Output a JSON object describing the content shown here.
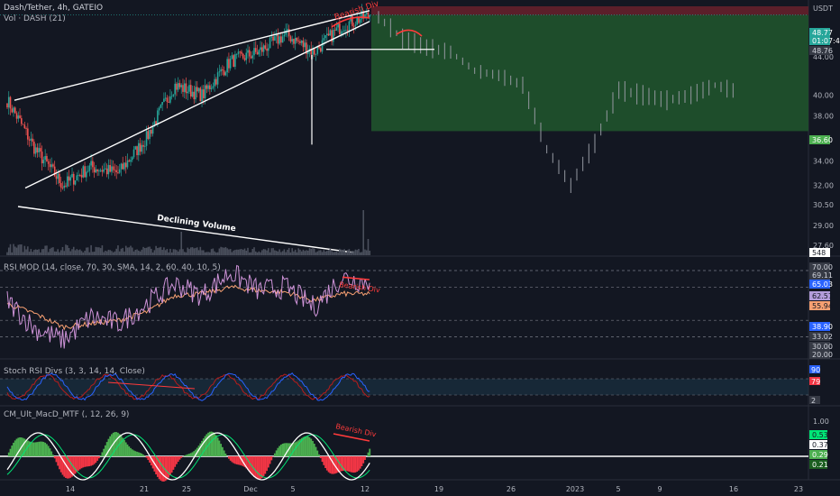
{
  "header": {
    "symbol": "Dash/Tether, 4h, GATEIO",
    "volume": "Vol · DASH (21)",
    "currency": "USDT"
  },
  "annotations": {
    "bearish_main": "Bearish Div",
    "declining_volume": "Declining Volume",
    "bearish_rsi": "Bearish Div",
    "bearish_macd": "Bearish Div"
  },
  "price_axis": {
    "ticks": [
      "44.00",
      "40.00",
      "38.00",
      "34.00",
      "32.00",
      "30.50",
      "29.00",
      "27.60"
    ],
    "tags": [
      {
        "text": "48.77",
        "bg": "#26a69a",
        "fg": "#ffffff"
      },
      {
        "text": "01:07:49",
        "bg": "#26a69a",
        "fg": "#ffffff"
      },
      {
        "text": "48.76",
        "bg": "#363a45",
        "fg": "#d1d4dc"
      },
      {
        "text": "36.60",
        "bg": "#4caf50",
        "fg": "#ffffff"
      },
      {
        "text": "548",
        "bg": "#ffffff",
        "fg": "#131722"
      }
    ]
  },
  "rsi": {
    "title": "RSI MOD (14, close, 70, 30, SMA, 14, 2, 60, 40, 10, 5)",
    "tags": [
      {
        "text": "70.00",
        "bg": "#363a45",
        "fg": "#d1d4dc"
      },
      {
        "text": "69.11",
        "bg": "#363a45",
        "fg": "#d1d4dc"
      },
      {
        "text": "65.03",
        "bg": "#2962ff",
        "fg": "#ffffff"
      },
      {
        "text": "62.57",
        "bg": "#b39ddb",
        "fg": "#131722"
      },
      {
        "text": "55.94",
        "bg": "#f7a072",
        "fg": "#131722"
      },
      {
        "text": "38.90",
        "bg": "#2962ff",
        "fg": "#ffffff"
      },
      {
        "text": "33.02",
        "bg": "#363a45",
        "fg": "#d1d4dc"
      },
      {
        "text": "30.00",
        "bg": "#363a45",
        "fg": "#d1d4dc"
      },
      {
        "text": "20.00",
        "bg": "#363a45",
        "fg": "#d1d4dc"
      }
    ]
  },
  "stoch": {
    "title": "Stoch RSI Divs (3, 3, 14, 14, Close)",
    "tags": [
      {
        "text": "90",
        "bg": "#2962ff",
        "fg": "#ffffff"
      },
      {
        "text": "79",
        "bg": "#f23645",
        "fg": "#ffffff"
      },
      {
        "text": "2",
        "bg": "#363a45",
        "fg": "#d1d4dc"
      }
    ]
  },
  "macd": {
    "title": "CM_Ult_MacD_MTF (, 12, 26, 9)",
    "ticks": [
      "1.00"
    ],
    "tags": [
      {
        "text": "0.53",
        "bg": "#00e676",
        "fg": "#131722"
      },
      {
        "text": "0.37",
        "bg": "#ffffff",
        "fg": "#131722"
      },
      {
        "text": "0.29",
        "bg": "#4caf50",
        "fg": "#ffffff"
      },
      {
        "text": "0.21",
        "bg": "#1b5e20",
        "fg": "#ffffff"
      }
    ]
  },
  "time_axis": [
    "14",
    "21",
    "25",
    "Dec",
    "5",
    "12",
    "19",
    "26",
    "2023",
    "5",
    "9",
    "16",
    "23"
  ],
  "colors": {
    "up": "#26a69a",
    "down": "#ef5350",
    "target_zone": "#1e4d2b",
    "stop_zone": "#5b1f2a",
    "ghost_bars": "#9598a1",
    "rsi_line": "#ce93d8",
    "rsi_ma": "#f7a072",
    "stoch_k": "#2962ff",
    "stoch_d": "#b71c1c",
    "divergence": "#ff3b3b"
  },
  "chart_data": [
    {
      "type": "candlestick",
      "title": "Dash/Tether, 4h, GATEIO",
      "ylabel": "USDT",
      "x": [
        "14",
        "21",
        "25",
        "Dec",
        "5",
        "12",
        "19",
        "26",
        "2023",
        "5",
        "9",
        "16",
        "23"
      ],
      "ylim": [
        27.6,
        49.5
      ],
      "y_scale": "log",
      "last_price": 48.77,
      "price_path": [
        39.5,
        35.0,
        32.0,
        33.5,
        33.0,
        36.0,
        41.0,
        40.0,
        43.5,
        44.5,
        46.5,
        44.5,
        47.5,
        48.77
      ],
      "target_price": 36.6,
      "projection": [
        48.5,
        46.0,
        45.0,
        44.5,
        42.5,
        42.0,
        41.0,
        35.0,
        32.0,
        35.5,
        40.5,
        40.0,
        39.5,
        40.0,
        41.0,
        40.3
      ]
    },
    {
      "type": "bar",
      "title": "Vol · DASH (21)",
      "last_value": 548,
      "annotation": "Declining Volume"
    },
    {
      "type": "line",
      "title": "RSI MOD (14, close, 70, 30, SMA, 14, 2, 60, 40, 10, 5)",
      "levels": [
        70,
        69.11,
        65.03,
        38.9,
        33.02,
        30
      ],
      "ylim": [
        20,
        70
      ],
      "series": [
        {
          "name": "RSI",
          "values": [
            52,
            35,
            28,
            42,
            38,
            50,
            62,
            55,
            69,
            58,
            60,
            48,
            66,
            62.57
          ]
        },
        {
          "name": "MA",
          "values": [
            50,
            44,
            36,
            38,
            40,
            45,
            55,
            56,
            60,
            58,
            57,
            52,
            56,
            55.94
          ]
        }
      ]
    },
    {
      "type": "line",
      "title": "Stoch RSI Divs (3, 3, 14, 14, Close)",
      "ylim": [
        0,
        100
      ],
      "series": [
        {
          "name": "K",
          "last": 90
        },
        {
          "name": "D",
          "last": 79
        }
      ]
    },
    {
      "type": "bar",
      "title": "CM_Ult_MacD_MTF (, 12, 26, 9)",
      "ylim": [
        -1.0,
        1.0
      ],
      "series": [
        {
          "name": "MACD",
          "last": 0.53
        },
        {
          "name": "Signal",
          "last": 0.37
        },
        {
          "name": "Histogram",
          "last": 0.29
        }
      ]
    }
  ]
}
